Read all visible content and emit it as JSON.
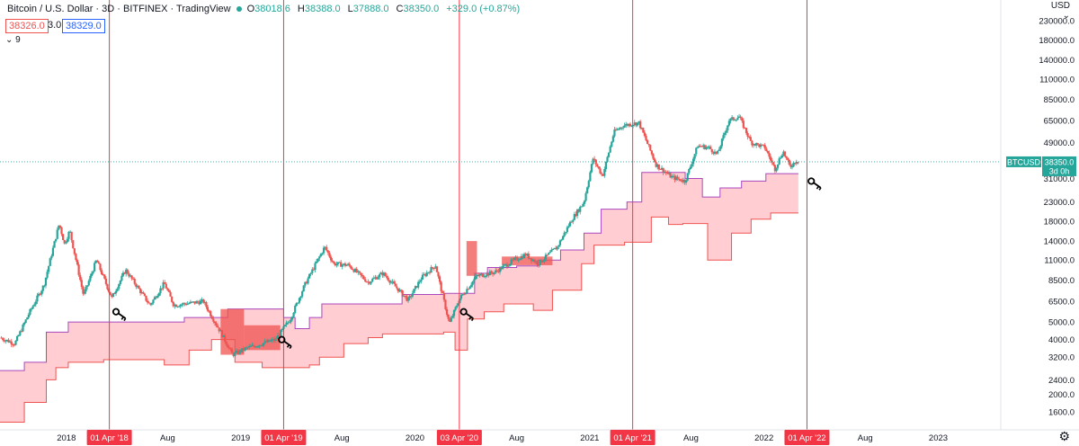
{
  "header": {
    "symbol": "Bitcoin / U.S. Dollar · 3D · BITFINEX · TradingView",
    "ohlc": [
      {
        "k": "O",
        "v": "38018.6"
      },
      {
        "k": "H",
        "v": "38388.0"
      },
      {
        "k": "L",
        "v": "37888.0"
      },
      {
        "k": "C",
        "v": "38350.0"
      }
    ],
    "change": "+329.0 (+0.87%)",
    "indicator_red": "38326.0",
    "indicator_param": "3.0",
    "indicator_blue": "38329.0",
    "collapse": "⌄ 9"
  },
  "axis": {
    "currency": "USD",
    "settings_icon": "gear-icon",
    "collapse_icon": "chevron-down-icon"
  },
  "colors": {
    "up": "#26a69a",
    "down": "#ef5350",
    "band_fill": "#ffcdd2",
    "band_line_top": "#ab47bc",
    "band_line_bottom": "#ef5350",
    "marker": "#f23645",
    "axis_text": "#131722"
  },
  "chart_data": {
    "type": "candlestick",
    "title": "Bitcoin / U.S. Dollar · 3D · BITFINEX",
    "scale": "log",
    "ylim": [
      1300,
      300000
    ],
    "xlim": [
      "2017-08-15",
      "2023-05-10"
    ],
    "last_price_label": {
      "symbol": "BTCUSD",
      "value": "38350.0",
      "countdown": "3d 0h"
    },
    "y_ticks": [
      {
        "v": 1600,
        "label": "1600.0"
      },
      {
        "v": 2000,
        "label": "2000.0"
      },
      {
        "v": 2400,
        "label": "2400.0"
      },
      {
        "v": 3200,
        "label": "3200.0"
      },
      {
        "v": 4000,
        "label": "4000.0"
      },
      {
        "v": 5000,
        "label": "5000.0"
      },
      {
        "v": 6500,
        "label": "6500.0"
      },
      {
        "v": 8500,
        "label": "8500.0"
      },
      {
        "v": 11000,
        "label": "11000.0"
      },
      {
        "v": 14000,
        "label": "14000.0"
      },
      {
        "v": 18000,
        "label": "18000.0"
      },
      {
        "v": 23000,
        "label": "23000.0"
      },
      {
        "v": 31000,
        "label": "31000.0"
      },
      {
        "v": 49000,
        "label": "49000.0"
      },
      {
        "v": 65000,
        "label": "65000.0"
      },
      {
        "v": 85000,
        "label": "85000.0"
      },
      {
        "v": 110000,
        "label": "110000.0"
      },
      {
        "v": 140000,
        "label": "140000.0"
      },
      {
        "v": 180000,
        "label": "180000.0"
      },
      {
        "v": 230000,
        "label": "230000.0"
      }
    ],
    "x_ticks": [
      {
        "date": "2018-01-01",
        "label": "2018"
      },
      {
        "date": "2018-08-01",
        "label": "Aug"
      },
      {
        "date": "2019-01-01",
        "label": "2019"
      },
      {
        "date": "2019-08-01",
        "label": "Aug"
      },
      {
        "date": "2020-01-01",
        "label": "2020"
      },
      {
        "date": "2020-08-01",
        "label": "Aug"
      },
      {
        "date": "2021-01-01",
        "label": "2021"
      },
      {
        "date": "2021-08-01",
        "label": "Aug"
      },
      {
        "date": "2022-01-01",
        "label": "2022"
      },
      {
        "date": "2022-08-01",
        "label": "Aug"
      },
      {
        "date": "2023-01-01",
        "label": "2023"
      }
    ],
    "markers": [
      {
        "date": "2018-04-01",
        "label": "01 Apr '18"
      },
      {
        "date": "2019-04-01",
        "label": "01 Apr '19"
      },
      {
        "date": "2020-04-03",
        "label": "03 Apr '20"
      },
      {
        "date": "2021-04-01",
        "label": "01 Apr '21"
      },
      {
        "date": "2022-04-01",
        "label": "01 Apr '22"
      }
    ],
    "price_path": [
      [
        "2017-08-15",
        4100
      ],
      [
        "2017-09-15",
        3800
      ],
      [
        "2017-10-15",
        5600
      ],
      [
        "2017-11-15",
        8000
      ],
      [
        "2017-12-17",
        17500
      ],
      [
        "2017-12-28",
        13500
      ],
      [
        "2018-01-08",
        16000
      ],
      [
        "2018-02-06",
        7000
      ],
      [
        "2018-03-05",
        11000
      ],
      [
        "2018-04-06",
        6800
      ],
      [
        "2018-05-05",
        9700
      ],
      [
        "2018-06-25",
        6200
      ],
      [
        "2018-07-25",
        8200
      ],
      [
        "2018-08-14",
        6200
      ],
      [
        "2018-10-15",
        6500
      ],
      [
        "2018-11-20",
        4400
      ],
      [
        "2018-12-15",
        3300
      ],
      [
        "2019-01-15",
        3600
      ],
      [
        "2019-03-15",
        4000
      ],
      [
        "2019-04-15",
        5200
      ],
      [
        "2019-05-15",
        8000
      ],
      [
        "2019-06-26",
        13000
      ],
      [
        "2019-07-15",
        10500
      ],
      [
        "2019-08-15",
        10300
      ],
      [
        "2019-09-25",
        8300
      ],
      [
        "2019-10-26",
        9300
      ],
      [
        "2019-12-18",
        6600
      ],
      [
        "2020-01-15",
        8800
      ],
      [
        "2020-02-13",
        10300
      ],
      [
        "2020-03-13",
        4900
      ],
      [
        "2020-04-03",
        6700
      ],
      [
        "2020-05-10",
        9000
      ],
      [
        "2020-06-15",
        9400
      ],
      [
        "2020-07-27",
        11000
      ],
      [
        "2020-08-20",
        11800
      ],
      [
        "2020-09-15",
        10500
      ],
      [
        "2020-10-25",
        13000
      ],
      [
        "2020-11-25",
        18500
      ],
      [
        "2020-12-20",
        23000
      ],
      [
        "2021-01-08",
        40000
      ],
      [
        "2021-01-28",
        32000
      ],
      [
        "2021-02-21",
        56000
      ],
      [
        "2021-03-13",
        61000
      ],
      [
        "2021-04-14",
        63000
      ],
      [
        "2021-05-20",
        37000
      ],
      [
        "2021-06-22",
        31500
      ],
      [
        "2021-07-20",
        30000
      ],
      [
        "2021-08-15",
        47000
      ],
      [
        "2021-09-07",
        46000
      ],
      [
        "2021-09-25",
        42000
      ],
      [
        "2021-10-20",
        65000
      ],
      [
        "2021-11-10",
        68000
      ],
      [
        "2021-12-05",
        49000
      ],
      [
        "2022-01-03",
        46000
      ],
      [
        "2022-01-24",
        35000
      ],
      [
        "2022-02-10",
        44000
      ],
      [
        "2022-02-24",
        36000
      ],
      [
        "2022-03-10",
        39000
      ],
      [
        "2022-03-14",
        38350
      ]
    ],
    "band_top": [
      [
        "2017-08-15",
        2700
      ],
      [
        "2017-10-05",
        3000
      ],
      [
        "2017-11-20",
        4400
      ],
      [
        "2017-12-10",
        4400
      ],
      [
        "2018-01-05",
        5000
      ],
      [
        "2018-08-15",
        5000
      ],
      [
        "2018-09-05",
        5300
      ],
      [
        "2018-12-01",
        5300
      ],
      [
        "2018-12-05",
        5900
      ],
      [
        "2019-04-01",
        5300
      ],
      [
        "2019-04-25",
        4600
      ],
      [
        "2019-05-25",
        5300
      ],
      [
        "2019-06-20",
        6300
      ],
      [
        "2019-12-05",
        7100
      ],
      [
        "2020-03-01",
        7200
      ],
      [
        "2020-04-10",
        7200
      ],
      [
        "2020-05-05",
        9300
      ],
      [
        "2020-06-01",
        10000
      ],
      [
        "2020-08-01",
        10200
      ],
      [
        "2020-09-15",
        11000
      ],
      [
        "2020-11-01",
        12500
      ],
      [
        "2020-12-20",
        15500
      ],
      [
        "2021-01-25",
        21000
      ],
      [
        "2021-03-20",
        23000
      ],
      [
        "2021-04-20",
        33500
      ],
      [
        "2021-05-25",
        33500
      ],
      [
        "2021-07-20",
        31000
      ],
      [
        "2021-08-25",
        24500
      ],
      [
        "2021-10-01",
        27500
      ],
      [
        "2021-11-15",
        30000
      ],
      [
        "2022-01-05",
        33000
      ],
      [
        "2022-03-14",
        33000
      ]
    ],
    "band_bottom": [
      [
        "2017-08-15",
        1400
      ],
      [
        "2017-10-05",
        1800
      ],
      [
        "2017-11-20",
        2400
      ],
      [
        "2017-12-10",
        2800
      ],
      [
        "2018-01-05",
        3000
      ],
      [
        "2018-03-20",
        3100
      ],
      [
        "2018-07-25",
        2900
      ],
      [
        "2018-09-15",
        3500
      ],
      [
        "2018-11-01",
        4000
      ],
      [
        "2018-12-20",
        3000
      ],
      [
        "2019-02-15",
        2800
      ],
      [
        "2019-05-20",
        2800
      ],
      [
        "2019-05-25",
        2900
      ],
      [
        "2019-06-15",
        3200
      ],
      [
        "2019-08-05",
        3800
      ],
      [
        "2019-09-25",
        4100
      ],
      [
        "2019-10-25",
        4300
      ],
      [
        "2020-03-01",
        4400
      ],
      [
        "2020-03-25",
        3500
      ],
      [
        "2020-04-10",
        3500
      ],
      [
        "2020-04-20",
        5200
      ],
      [
        "2020-05-25",
        5700
      ],
      [
        "2020-07-05",
        6300
      ],
      [
        "2020-09-05",
        5800
      ],
      [
        "2020-10-15",
        7500
      ],
      [
        "2020-12-15",
        10500
      ],
      [
        "2021-01-10",
        13300
      ],
      [
        "2021-03-15",
        13800
      ],
      [
        "2021-05-10",
        19000
      ],
      [
        "2021-06-15",
        17300
      ],
      [
        "2021-07-15",
        17500
      ],
      [
        "2021-09-05",
        11000
      ],
      [
        "2021-10-25",
        15500
      ],
      [
        "2021-12-05",
        18500
      ],
      [
        "2022-01-15",
        20000
      ],
      [
        "2022-03-14",
        20000
      ]
    ],
    "ribbon": [
      {
        "from": "2018-11-20",
        "to": "2019-01-08",
        "top": 5900,
        "bottom": 3300
      },
      {
        "from": "2019-01-08",
        "to": "2019-03-25",
        "top": 4800,
        "bottom": 3500
      },
      {
        "from": "2020-04-18",
        "to": "2020-05-10",
        "top": 14000,
        "bottom": 9000
      },
      {
        "from": "2020-07-01",
        "to": "2020-10-15",
        "top": 11500,
        "bottom": 10300
      }
    ],
    "key_icons": [
      {
        "date": "2018-04-15",
        "price": 5700
      },
      {
        "date": "2019-03-28",
        "price": 4000
      },
      {
        "date": "2020-04-12",
        "price": 5700
      },
      {
        "date": "2022-04-10",
        "price": 30000
      }
    ]
  }
}
